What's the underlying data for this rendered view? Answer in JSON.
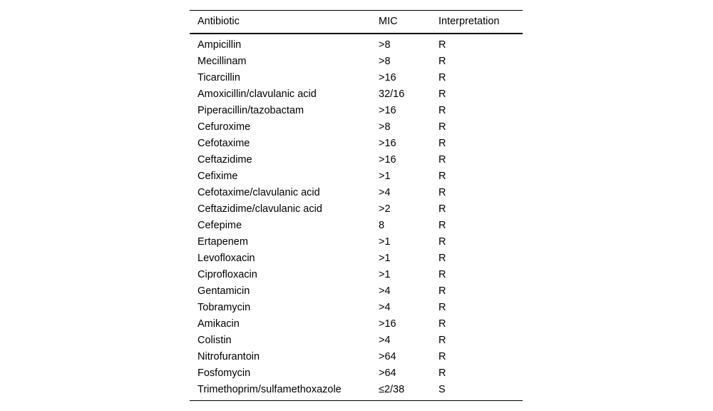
{
  "table": {
    "columns": [
      "Antibiotic",
      "MIC",
      "Interpretation"
    ],
    "rows": [
      [
        "Ampicillin",
        ">8",
        "R"
      ],
      [
        "Mecillinam",
        ">8",
        "R"
      ],
      [
        "Ticarcillin",
        ">16",
        "R"
      ],
      [
        "Amoxicillin/clavulanic acid",
        "32/16",
        "R"
      ],
      [
        "Piperacillin/tazobactam",
        ">16",
        "R"
      ],
      [
        "Cefuroxime",
        ">8",
        "R"
      ],
      [
        "Cefotaxime",
        ">16",
        "R"
      ],
      [
        "Ceftazidime",
        ">16",
        "R"
      ],
      [
        "Cefixime",
        ">1",
        "R"
      ],
      [
        "Cefotaxime/clavulanic acid",
        ">4",
        "R"
      ],
      [
        "Ceftazidime/clavulanic acid",
        ">2",
        "R"
      ],
      [
        "Cefepime",
        "8",
        "R"
      ],
      [
        "Ertapenem",
        ">1",
        "R"
      ],
      [
        "Levofloxacin",
        ">1",
        "R"
      ],
      [
        "Ciprofloxacin",
        ">1",
        "R"
      ],
      [
        "Gentamicin",
        ">4",
        "R"
      ],
      [
        "Tobramycin",
        ">4",
        "R"
      ],
      [
        "Amikacin",
        ">16",
        "R"
      ],
      [
        "Colistin",
        ">4",
        "R"
      ],
      [
        "Nitrofurantoin",
        ">64",
        "R"
      ],
      [
        "Fosfomycin",
        ">64",
        "R"
      ],
      [
        "Trimethoprim/sulfamethoxazole",
        "≤2/38",
        "S"
      ]
    ]
  },
  "colors": {
    "background": "#ffffff",
    "text": "#000000",
    "rule": "#000000"
  }
}
